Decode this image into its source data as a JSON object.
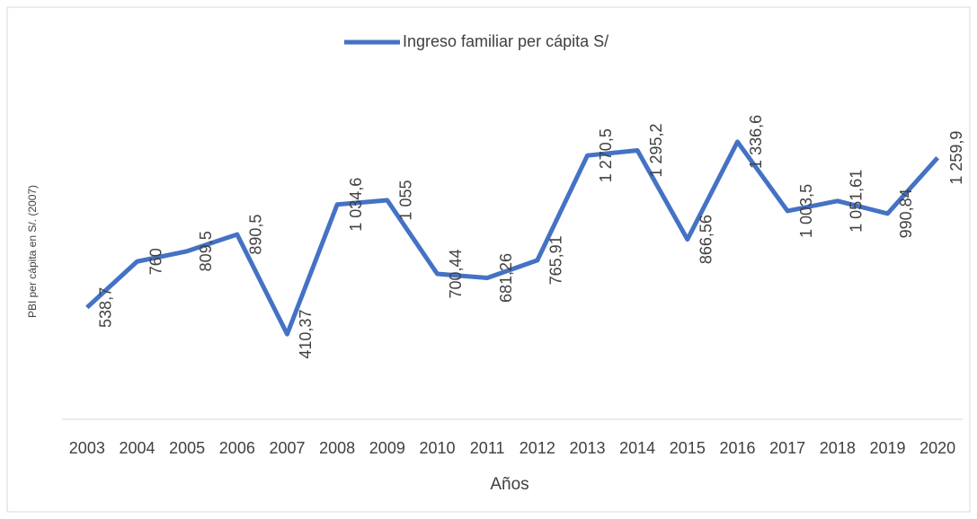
{
  "chart_data": {
    "type": "line",
    "legend": "top",
    "y_label": "PBI per cápita en S/. (2007)",
    "x_label": "Años",
    "categories": [
      "2003",
      "2004",
      "2005",
      "2006",
      "2007",
      "2008",
      "2009",
      "2010",
      "2011",
      "2012",
      "2013",
      "2014",
      "2015",
      "2016",
      "2017",
      "2018",
      "2019",
      "2020"
    ],
    "series": [
      {
        "name": "Ingreso familiar per cápita S/",
        "color": "#4472c4",
        "values": [
          538.7,
          760,
          809.5,
          890.5,
          410.37,
          1034.6,
          1055,
          700.44,
          681.26,
          765.91,
          1270.5,
          1295.2,
          866.56,
          1336.6,
          1003.5,
          1051.61,
          990.84,
          1259.9
        ],
        "value_labels": [
          "538,7",
          "760",
          "809,5",
          "890,5",
          "410,37",
          "1 034,6",
          "1 055",
          "700,44",
          "681,26",
          "765,91",
          "1 270,5",
          "1 295,2",
          "866,56",
          "1 336,6",
          "1 003,5",
          "1 051,61",
          "990,84",
          "1 259,9"
        ]
      }
    ],
    "ylim": [
      0,
      1600
    ]
  }
}
